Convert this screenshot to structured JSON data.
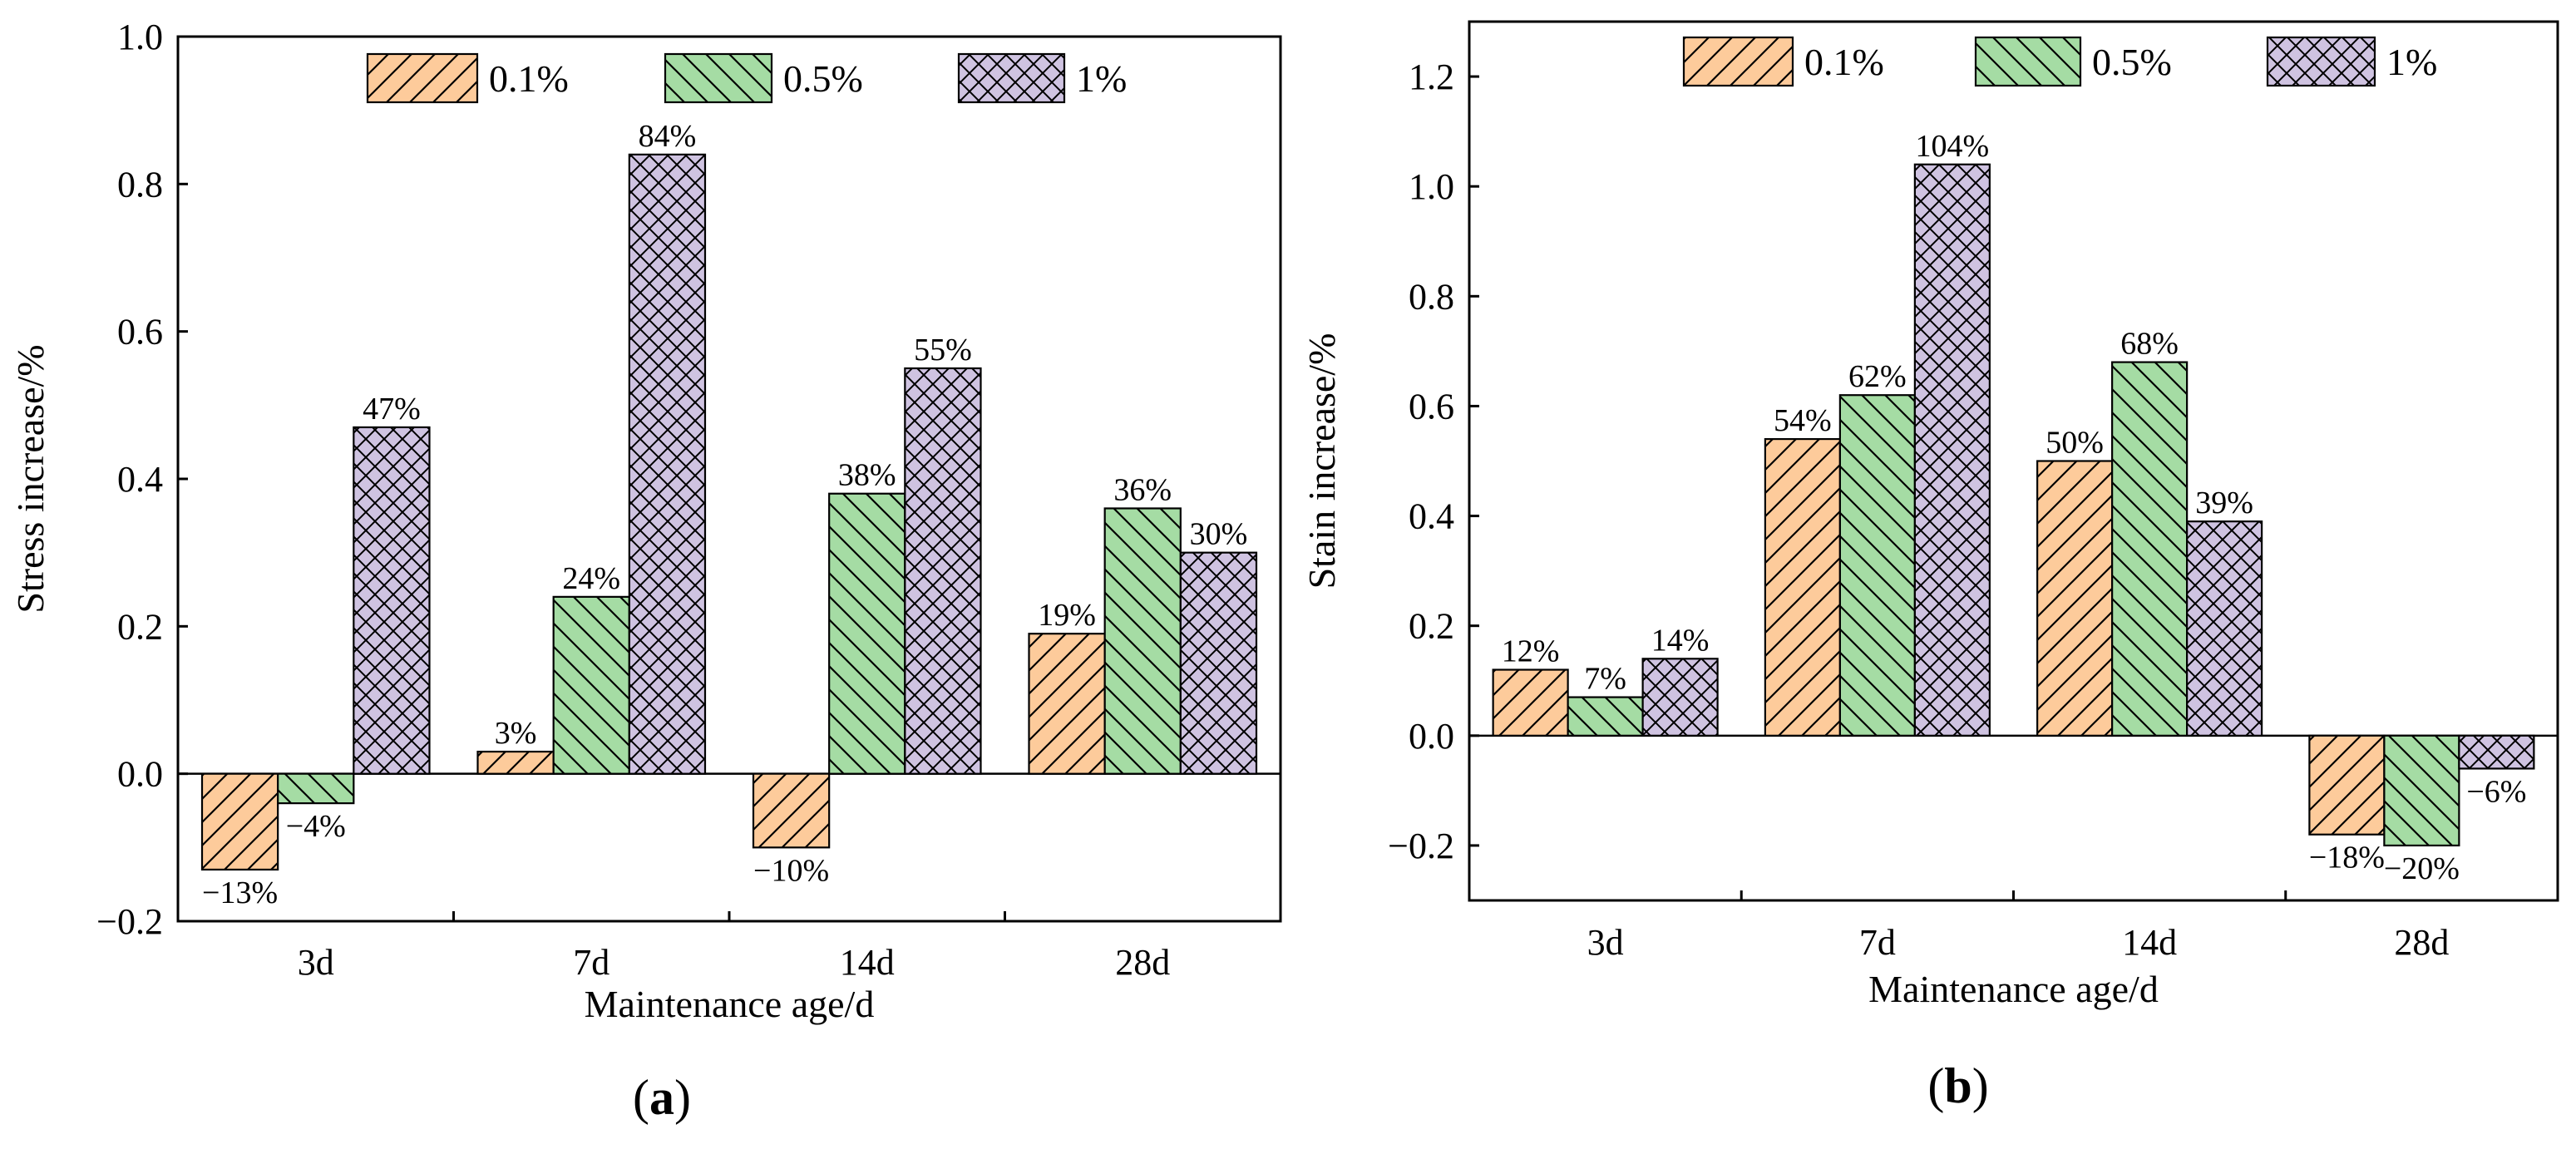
{
  "legend_colors": [
    "#FDCB9B",
    "#A5DCA4",
    "#CFC3E1"
  ],
  "chart_data": [
    {
      "type": "bar",
      "panel_label": "a",
      "categories": [
        "3d",
        "7d",
        "14d",
        "28d"
      ],
      "series": [
        {
          "name": "0.1%",
          "values": [
            -0.13,
            0.03,
            -0.1,
            0.19
          ],
          "labels": [
            "−13%",
            "3%",
            "−10%",
            "19%"
          ]
        },
        {
          "name": "0.5%",
          "values": [
            -0.04,
            0.24,
            0.38,
            0.36
          ],
          "labels": [
            "−4%",
            "24%",
            "38%",
            "36%"
          ]
        },
        {
          "name": "1%",
          "values": [
            0.47,
            0.84,
            0.55,
            0.3
          ],
          "labels": [
            "47%",
            "84%",
            "55%",
            "30%"
          ]
        }
      ],
      "xlabel": "Maintenance age/d",
      "ylabel": "Stress increase/%",
      "ylim": [
        -0.2,
        1.0
      ],
      "yticks": [
        -0.2,
        0.0,
        0.2,
        0.4,
        0.6,
        0.8,
        1.0
      ],
      "ytick_labels": [
        "−0.2",
        "0.0",
        "0.2",
        "0.4",
        "0.6",
        "0.8",
        "1.0"
      ],
      "legend_position": "top-center",
      "grid": false
    },
    {
      "type": "bar",
      "panel_label": "b",
      "categories": [
        "3d",
        "7d",
        "14d",
        "28d"
      ],
      "series": [
        {
          "name": "0.1%",
          "values": [
            0.12,
            0.54,
            0.5,
            -0.18
          ],
          "labels": [
            "12%",
            "54%",
            "50%",
            "−18%"
          ]
        },
        {
          "name": "0.5%",
          "values": [
            0.07,
            0.62,
            0.68,
            -0.2
          ],
          "labels": [
            "7%",
            "62%",
            "68%",
            "−20%"
          ]
        },
        {
          "name": "1%",
          "values": [
            0.14,
            1.04,
            0.39,
            -0.06
          ],
          "labels": [
            "14%",
            "104%",
            "39%",
            "−6%"
          ]
        }
      ],
      "xlabel": "Maintenance age/d",
      "ylabel": "Stain increase/%",
      "ylim": [
        -0.3,
        1.3
      ],
      "yticks": [
        -0.2,
        0.0,
        0.2,
        0.4,
        0.6,
        0.8,
        1.0,
        1.2
      ],
      "ytick_labels": [
        "−0.2",
        "0.0",
        "0.2",
        "0.4",
        "0.6",
        "0.8",
        "1.0",
        "1.2"
      ],
      "legend_position": "top-center",
      "grid": false
    }
  ]
}
